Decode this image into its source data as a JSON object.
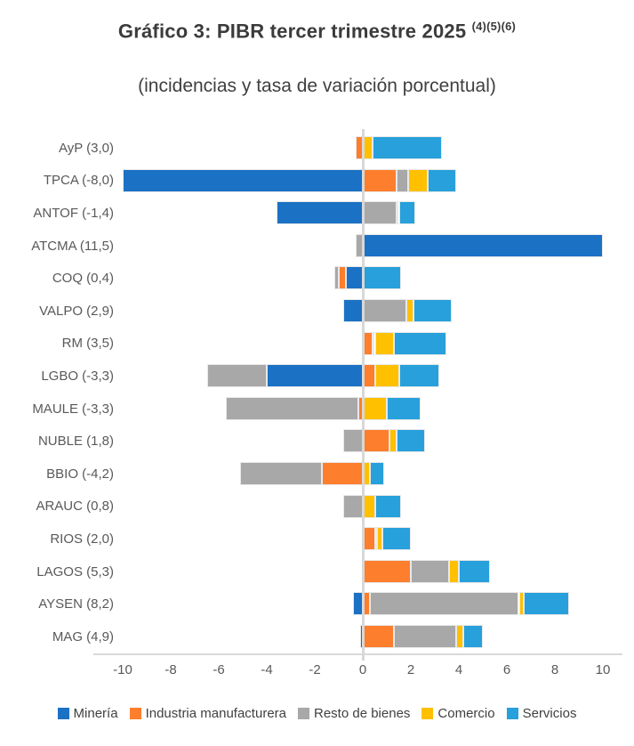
{
  "title": {
    "main": "Gráfico 3: PIBR tercer trimestre 2025",
    "superscript": "(4)(5)(6)",
    "subtitle": "(incidencias y tasa de variación porcentual)"
  },
  "colors": {
    "mineria": "#1b71c4",
    "industria": "#fd7e2c",
    "resto": "#a8a8a8",
    "comercio": "#ffc000",
    "servicios": "#27a0db",
    "gridline": "#d8d8d8",
    "axis_text": "#595959",
    "title_text": "#3b3b3b"
  },
  "chart_data": {
    "type": "bar",
    "orientation": "horizontal-stacked",
    "title": "Gráfico 3: PIBR tercer trimestre 2025 (4)(5)(6)",
    "subtitle": "(incidencias y tasa de variación porcentual)",
    "xlabel": "",
    "ylabel": "",
    "xlim": [
      -10,
      10
    ],
    "xtick_labels": [
      "-10",
      "-8",
      "-6",
      "-4",
      "-2",
      "0",
      "2",
      "4",
      "6",
      "8",
      "10"
    ],
    "grid": "zero-line-only",
    "legend_position": "bottom",
    "categories": [
      "AyP (3,0)",
      "TPCA (-8,0)",
      "ANTOF (-1,4)",
      "ATCMA (11,5)",
      "COQ (0,4)",
      "VALPO (2,9)",
      "RM (3,5)",
      "LGBO (-3,3)",
      "MAULE (-3,3)",
      "NUBLE (1,8)",
      "BBIO (-4,2)",
      "ARAUC (0,8)",
      "RIOS (2,0)",
      "LAGOS (5,3)",
      "AYSEN (8,2)",
      "MAG (4,9)"
    ],
    "totals": [
      3.0,
      -8.0,
      -1.4,
      11.5,
      0.4,
      2.9,
      3.5,
      -3.3,
      -3.3,
      1.8,
      -4.2,
      0.8,
      2.0,
      5.3,
      8.2,
      4.9
    ],
    "series": [
      {
        "name": "Minería",
        "color_key": "mineria",
        "values": [
          0,
          -10.0,
          -3.6,
          10.0,
          -0.7,
          -0.8,
          0,
          -4.0,
          0,
          0,
          0,
          0,
          0,
          0,
          -0.4,
          -0.1
        ]
      },
      {
        "name": "Industria manufacturera",
        "color_key": "industria",
        "values": [
          -0.3,
          1.4,
          0,
          0,
          -0.3,
          0,
          0.4,
          0.5,
          -0.2,
          1.1,
          -1.7,
          0,
          0.5,
          2.0,
          0.3,
          1.3
        ]
      },
      {
        "name": "Resto de bienes",
        "color_key": "resto",
        "values": [
          0,
          0.5,
          1.4,
          -0.3,
          -0.2,
          1.8,
          0.1,
          -2.5,
          -5.5,
          -0.8,
          -3.4,
          -0.8,
          0.1,
          1.6,
          6.2,
          2.6
        ]
      },
      {
        "name": "Comercio",
        "color_key": "comercio",
        "values": [
          0.4,
          0.8,
          0.1,
          0,
          0,
          0.3,
          0.8,
          1.0,
          1.0,
          0.3,
          0.3,
          0.5,
          0.2,
          0.4,
          0.2,
          0.3
        ]
      },
      {
        "name": "Servicios",
        "color_key": "servicios",
        "values": [
          2.9,
          1.2,
          0.7,
          0,
          1.6,
          1.6,
          2.2,
          1.7,
          1.4,
          1.2,
          0.6,
          1.1,
          1.2,
          1.3,
          1.9,
          0.8
        ]
      }
    ]
  }
}
